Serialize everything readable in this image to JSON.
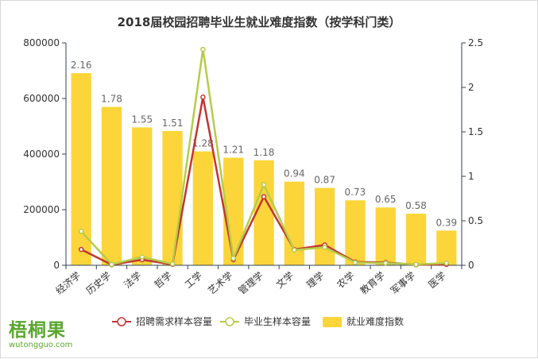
{
  "chart_data": {
    "type": "bar",
    "title": "2018届校园招聘毕业生就业难度指数（按学科门类）",
    "categories": [
      "经济学",
      "历史学",
      "法学",
      "哲学",
      "工学",
      "艺术学",
      "管理学",
      "文学",
      "理学",
      "农学",
      "教育学",
      "军事学",
      "医学"
    ],
    "series": [
      {
        "name": "就业难度指数",
        "type": "bar",
        "axis": "right",
        "color": "#fcd53a",
        "values": [
          2.16,
          1.78,
          1.55,
          1.51,
          1.28,
          1.21,
          1.18,
          0.94,
          0.87,
          0.73,
          0.65,
          0.58,
          0.39
        ]
      },
      {
        "name": "招聘需求样本容量",
        "type": "line",
        "axis": "left",
        "color": "#c23531",
        "values": [
          57000,
          2000,
          20000,
          3000,
          605000,
          20000,
          247000,
          57000,
          73000,
          12000,
          10000,
          2000,
          3000
        ]
      },
      {
        "name": "毕业生样本容量",
        "type": "line",
        "axis": "left",
        "color": "#b5cc4a",
        "values": [
          122000,
          3000,
          30000,
          5000,
          777000,
          25000,
          290000,
          55000,
          65000,
          10000,
          8000,
          3000,
          8000
        ]
      }
    ],
    "y_left": {
      "min": 0,
      "max": 800000,
      "ticks": [
        0,
        200000,
        400000,
        600000,
        800000
      ]
    },
    "y_right": {
      "min": 0,
      "max": 2.5,
      "ticks": [
        0,
        0.5,
        1,
        1.5,
        2,
        2.5
      ]
    },
    "legend_position": "bottom",
    "grid": false
  },
  "logo": {
    "name": "梧桐果",
    "url": "wutongguo.com"
  }
}
